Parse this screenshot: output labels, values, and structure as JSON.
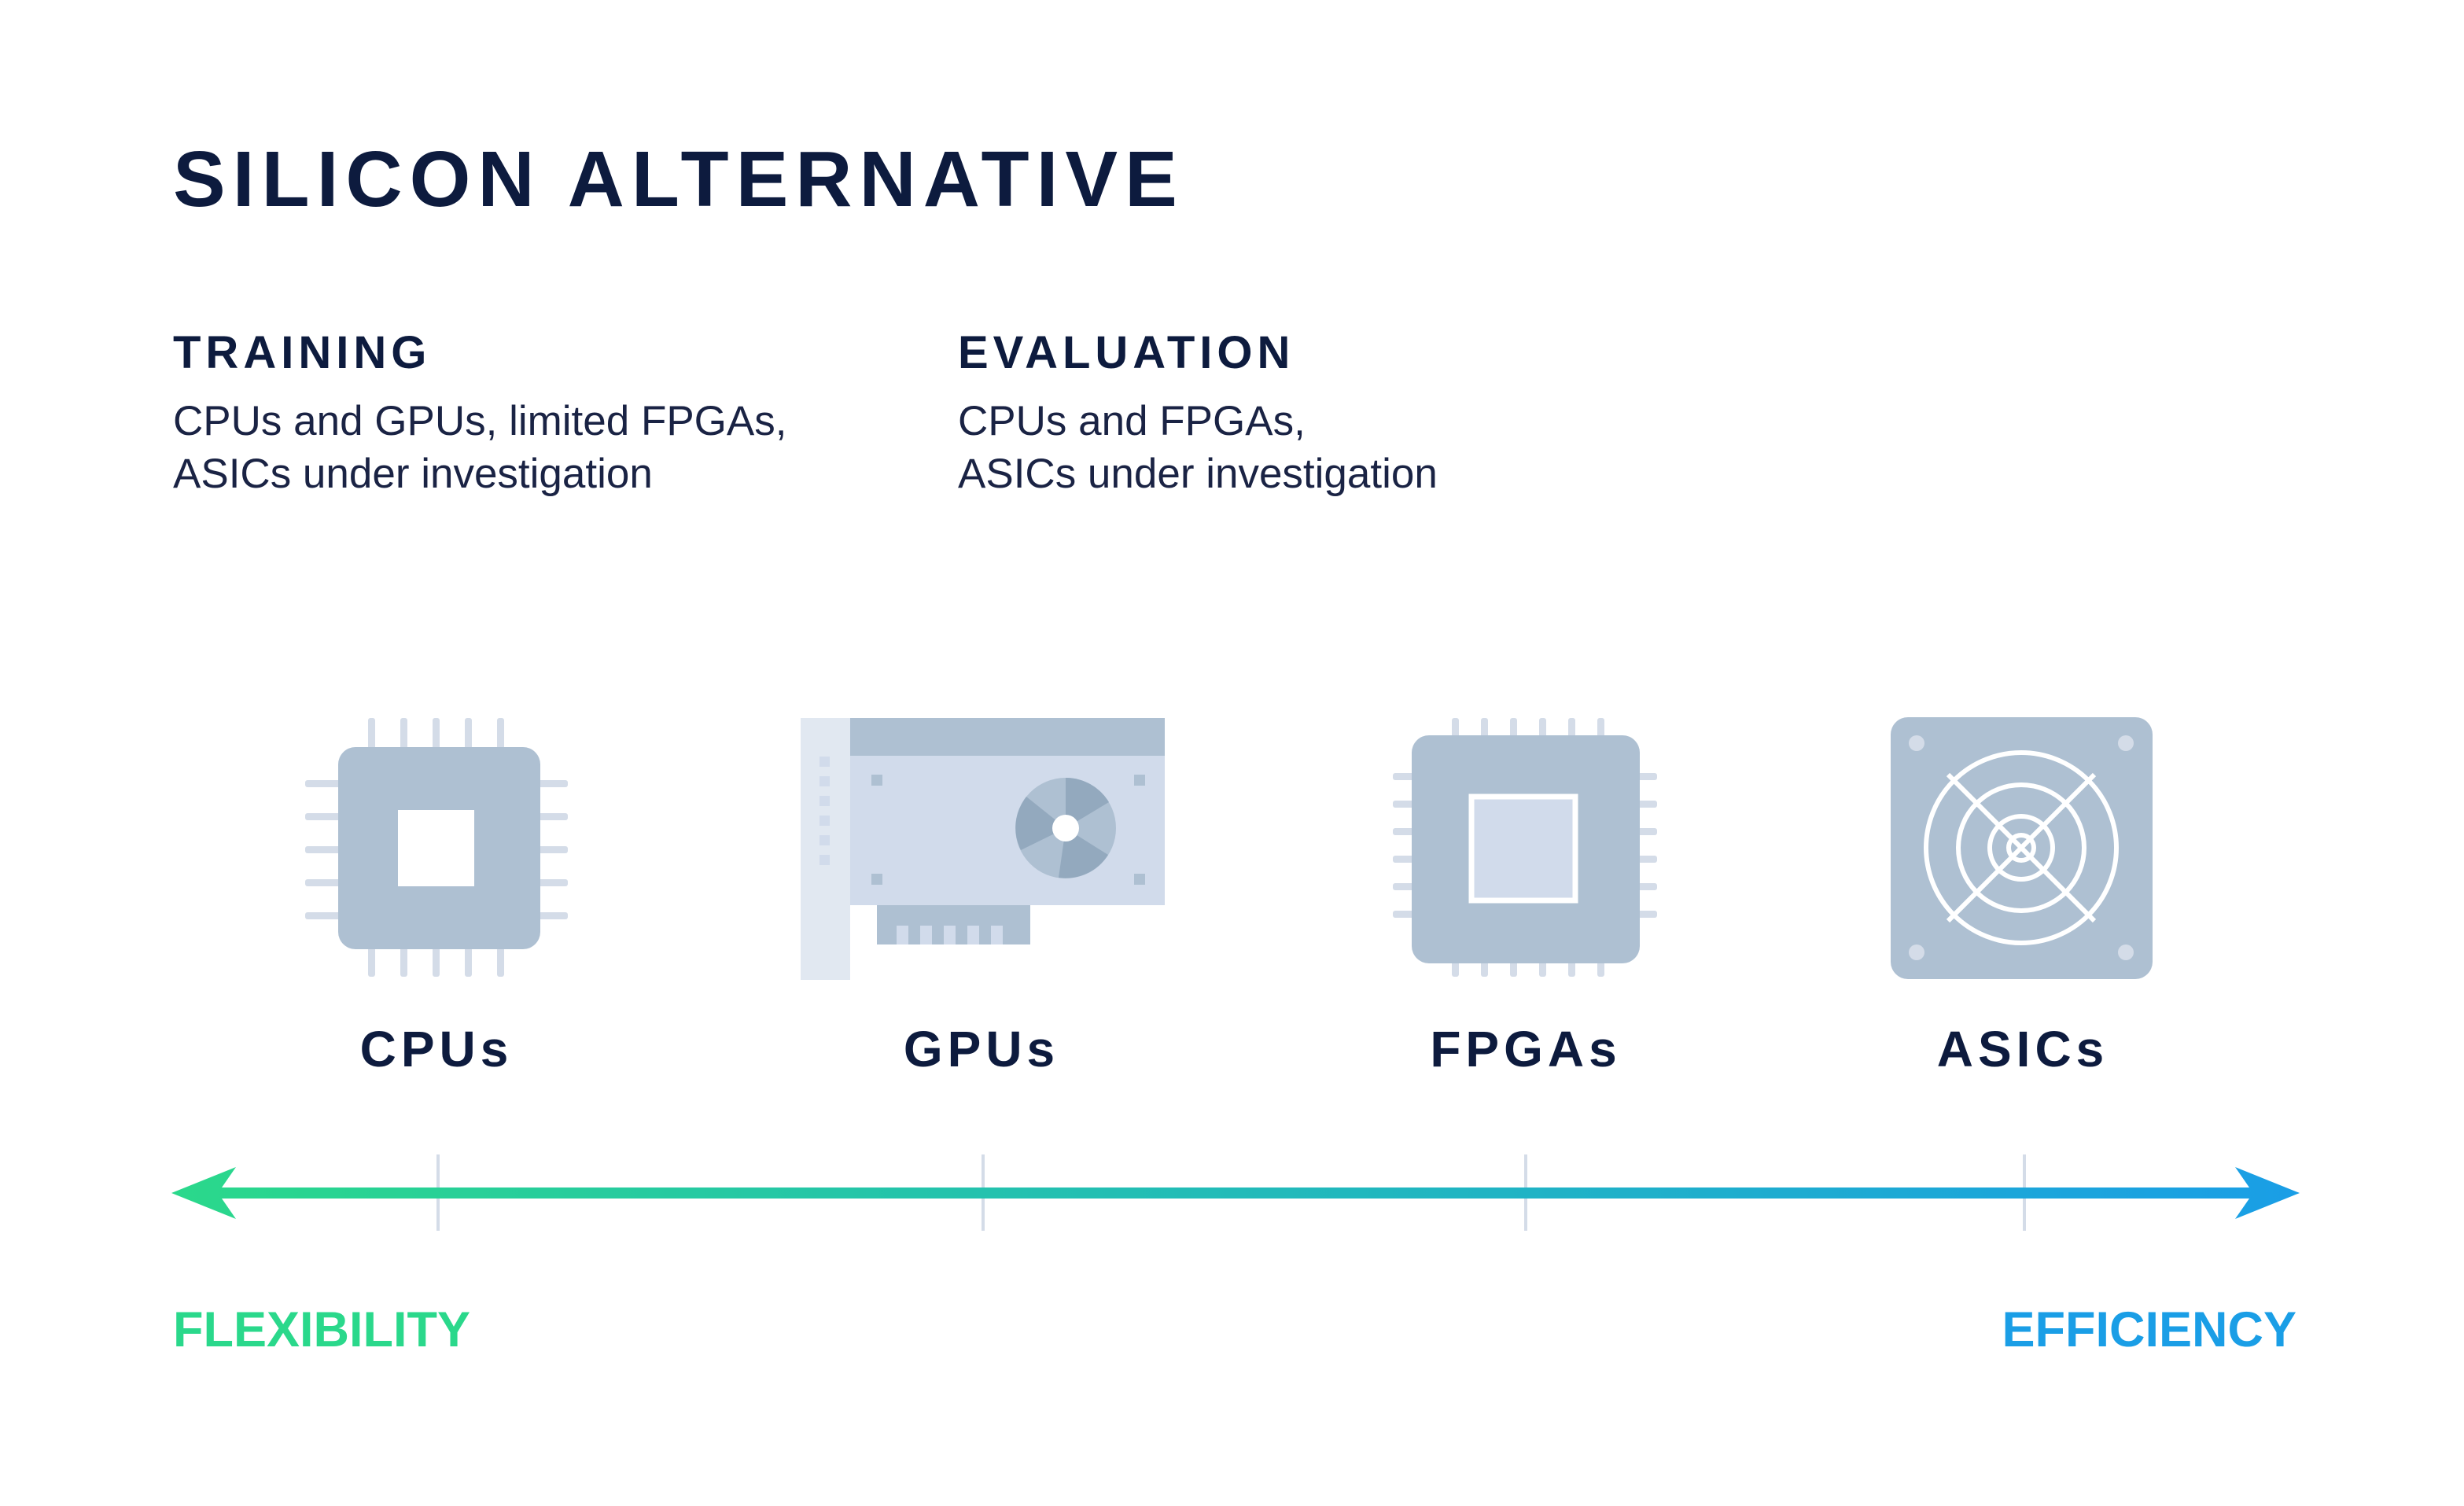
{
  "title": "SILICON ALTERNATIVE",
  "training": {
    "heading": "TRAINING",
    "line1": "CPUs and GPUs, limited FPGAs,",
    "line2": "ASICs under investigation"
  },
  "evaluation": {
    "heading": "EVALUATION",
    "line1": "CPUs and FPGAs,",
    "line2": "ASICs under investigation"
  },
  "hardware": [
    {
      "label": "CPUs",
      "icon": "cpu-chip-icon"
    },
    {
      "label": "GPUs",
      "icon": "gpu-card-icon"
    },
    {
      "label": "FPGAs",
      "icon": "fpga-chip-icon"
    },
    {
      "label": "ASICs",
      "icon": "asic-fan-icon"
    }
  ],
  "axis": {
    "left_label": "FLEXIBILITY",
    "right_label": "EFFICIENCY"
  },
  "colors": {
    "text_dark": "#0d1b3e",
    "icon_dark": "#aec0d2",
    "icon_light": "#d1dbeb",
    "icon_pale": "#e1e8f1",
    "pin": "#d4dce8",
    "gradient_start": "#2ad88b",
    "gradient_end": "#1a9ee6",
    "flexibility": "#2ad88b",
    "efficiency": "#1a9ee6"
  }
}
